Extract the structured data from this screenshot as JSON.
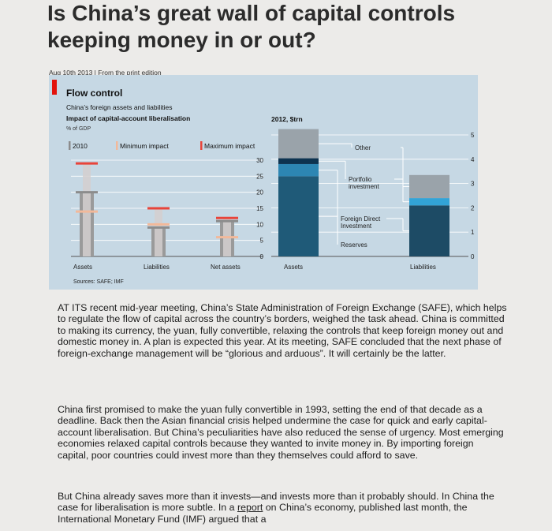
{
  "article": {
    "headline_line1": "Is China’s great wall of capital controls",
    "headline_line2": "keeping money in or out?",
    "dateline": "Aug 10th 2013 | From the print edition",
    "paragraphs": [
      "AT ITS recent mid-year meeting, China’s State Administration of Foreign Exchange (SAFE), which helps to regulate the flow of capital across the country’s borders, weighed the task ahead. China is committed to making its currency, the yuan, fully convertible, relaxing the controls that keep foreign money out and domestic money in. A plan is expected this year. At its meeting, SAFE concluded that the next phase of foreign-exchange management will be “glorious and arduous”. It will certainly be the latter.",
      "China first promised to make the yuan fully convertible in 1993, setting the end of that decade as a deadline. Back then the Asian financial crisis helped undermine the case for quick and early capital-account liberalisation. But China’s peculiarities have also reduced the sense of urgency. Most emerging economies relaxed capital controls because they wanted to invite money in. By importing foreign capital, poor countries could invest more than they themselves could afford to save."
    ],
    "p3_before": "But China already saves more than it invests—and invests more than it probably should. In China the case for liberalisation is more subtle. In a ",
    "p3_link": "report",
    "p3_after": " on China’s economy, published last month, the International Monetary Fund (IMF) argued that a"
  },
  "colors": {
    "panel_bg": "#c6d8e4",
    "red_tab": "#e3120b",
    "grey_2010": "#8c8c8c",
    "minimum_impact": "#f2b99a",
    "maximum_impact": "#e8443a",
    "reserves": "#1f5a78",
    "fdi": "#2d86b3",
    "portfolio": "#0d3350",
    "other": "#9aa3aa",
    "liab_fdi": "#1d4b65",
    "liab_portfolio": "#32a3d6"
  },
  "chart_data": [
    {
      "type": "bar",
      "title": "Flow control",
      "subtitle_line1": "China’s foreign assets and liabilities",
      "subtitle_line2": "Impact of capital-account liberalisation",
      "unit": "% of GDP",
      "categories": [
        "Assets",
        "Liabilities",
        "Net assets"
      ],
      "series": [
        {
          "name": "2010",
          "values": [
            20,
            9,
            11
          ]
        },
        {
          "name": "Minimum impact",
          "values": [
            14,
            10,
            6
          ]
        },
        {
          "name": "Maximum impact",
          "values": [
            29,
            15,
            12
          ]
        }
      ],
      "ylim": [
        0,
        30
      ],
      "yticks": [
        0,
        5,
        10,
        15,
        20,
        25,
        30
      ],
      "legend": "top"
    },
    {
      "type": "bar",
      "stacked": true,
      "title": "2012, $trn",
      "categories": [
        "Assets",
        "Liabilities"
      ],
      "series": [
        {
          "name": "Reserves",
          "values": [
            3.3,
            0
          ]
        },
        {
          "name": "Foreign Direct Investment",
          "values": [
            0.5,
            2.1
          ]
        },
        {
          "name": "Portfolio investment",
          "values": [
            0.24,
            0.3
          ]
        },
        {
          "name": "Other",
          "values": [
            1.2,
            0.95
          ]
        }
      ],
      "ylim": [
        0,
        5
      ],
      "yticks": [
        0,
        1,
        2,
        3,
        4,
        5
      ],
      "source": "Sources: SAFE; IMF"
    }
  ]
}
